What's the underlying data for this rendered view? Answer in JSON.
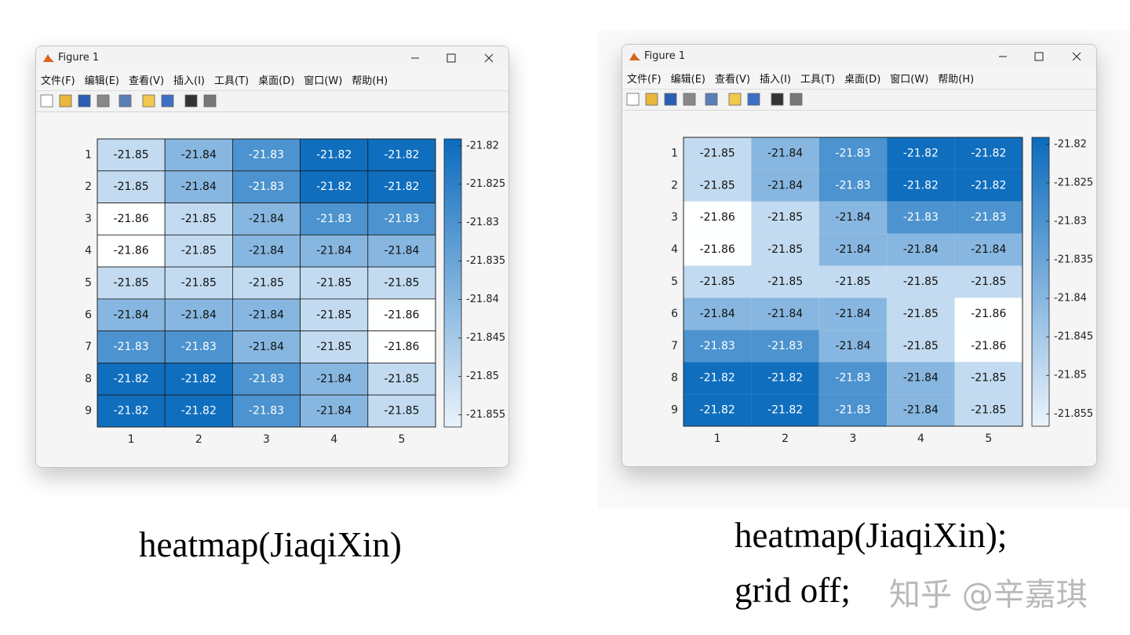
{
  "windows": [
    {
      "title": "Figure 1",
      "menu": [
        "文件(F)",
        "编辑(E)",
        "查看(V)",
        "插入(I)",
        "工具(T)",
        "桌面(D)",
        "窗口(W)",
        "帮助(H)"
      ],
      "chart_data": {
        "type": "heatmap",
        "grid": true,
        "categories": [
          "1",
          "2",
          "3",
          "4",
          "5"
        ],
        "rows": [
          "1",
          "2",
          "3",
          "4",
          "5",
          "6",
          "7",
          "8",
          "9"
        ],
        "values": [
          [
            -21.85,
            -21.84,
            -21.83,
            -21.82,
            -21.82
          ],
          [
            -21.85,
            -21.84,
            -21.83,
            -21.82,
            -21.82
          ],
          [
            -21.86,
            -21.85,
            -21.84,
            -21.83,
            -21.83
          ],
          [
            -21.86,
            -21.85,
            -21.84,
            -21.84,
            -21.84
          ],
          [
            -21.85,
            -21.85,
            -21.85,
            -21.85,
            -21.85
          ],
          [
            -21.84,
            -21.84,
            -21.84,
            -21.85,
            -21.86
          ],
          [
            -21.83,
            -21.83,
            -21.84,
            -21.85,
            -21.86
          ],
          [
            -21.82,
            -21.82,
            -21.83,
            -21.84,
            -21.85
          ],
          [
            -21.82,
            -21.82,
            -21.83,
            -21.84,
            -21.85
          ]
        ],
        "clim": [
          -21.8566,
          -21.8191
        ],
        "colorbar_ticks": [
          -21.82,
          -21.825,
          -21.83,
          -21.835,
          -21.84,
          -21.845,
          -21.85,
          -21.855
        ],
        "colormap": [
          "#eaf3fb",
          "#0b6bbd"
        ]
      },
      "caption": [
        "heatmap(JiaqiXin)"
      ]
    },
    {
      "title": "Figure 1",
      "menu": [
        "文件(F)",
        "编辑(E)",
        "查看(V)",
        "插入(I)",
        "工具(T)",
        "桌面(D)",
        "窗口(W)",
        "帮助(H)"
      ],
      "chart_data": {
        "type": "heatmap",
        "grid": false,
        "categories": [
          "1",
          "2",
          "3",
          "4",
          "5"
        ],
        "rows": [
          "1",
          "2",
          "3",
          "4",
          "5",
          "6",
          "7",
          "8",
          "9"
        ],
        "values": [
          [
            -21.85,
            -21.84,
            -21.83,
            -21.82,
            -21.82
          ],
          [
            -21.85,
            -21.84,
            -21.83,
            -21.82,
            -21.82
          ],
          [
            -21.86,
            -21.85,
            -21.84,
            -21.83,
            -21.83
          ],
          [
            -21.86,
            -21.85,
            -21.84,
            -21.84,
            -21.84
          ],
          [
            -21.85,
            -21.85,
            -21.85,
            -21.85,
            -21.85
          ],
          [
            -21.84,
            -21.84,
            -21.84,
            -21.85,
            -21.86
          ],
          [
            -21.83,
            -21.83,
            -21.84,
            -21.85,
            -21.86
          ],
          [
            -21.82,
            -21.82,
            -21.83,
            -21.84,
            -21.85
          ],
          [
            -21.82,
            -21.82,
            -21.83,
            -21.84,
            -21.85
          ]
        ],
        "clim": [
          -21.8566,
          -21.8191
        ],
        "colorbar_ticks": [
          -21.82,
          -21.825,
          -21.83,
          -21.835,
          -21.84,
          -21.845,
          -21.85,
          -21.855
        ],
        "colormap": [
          "#eaf3fb",
          "#0b6bbd"
        ]
      },
      "caption": [
        "heatmap(JiaqiXin);",
        "grid off;"
      ]
    }
  ],
  "watermark": "知乎 @辛嘉琪"
}
